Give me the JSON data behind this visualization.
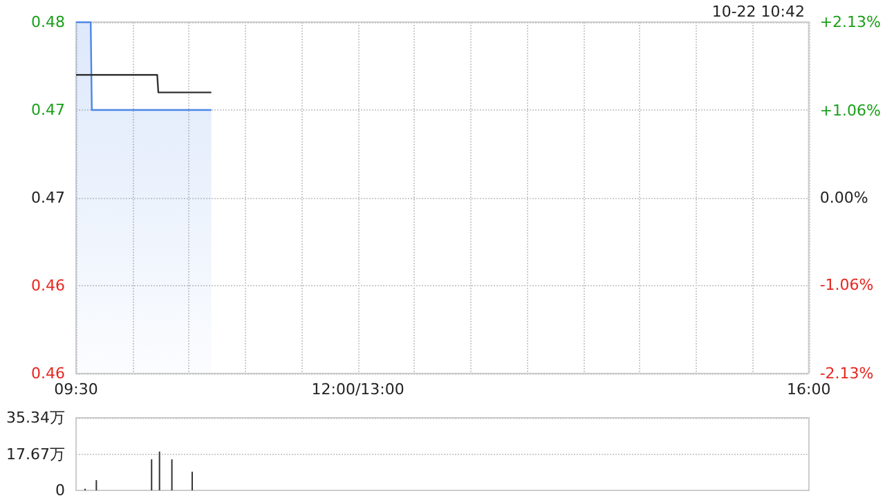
{
  "chart_data": [
    {
      "type": "line",
      "annotations": [
        "10-22 10:42"
      ],
      "series": [
        {
          "type": "area",
          "color": "#4a86e8",
          "x": [
            9.5,
            9.63,
            9.64,
            10.7
          ],
          "values": [
            0.48,
            0.48,
            0.475,
            0.475
          ]
        },
        {
          "color": "#333333",
          "x": [
            9.5,
            10.22,
            10.23,
            10.7
          ],
          "values": [
            0.477,
            0.477,
            0.476,
            0.476
          ]
        }
      ],
      "xlim": [
        9.5,
        16
      ],
      "xticks": [
        {
          "value": 9.5,
          "label": "09:30"
        },
        {
          "value": 10,
          "label": null
        },
        {
          "value": 10.5,
          "label": null
        },
        {
          "value": 11,
          "label": null
        },
        {
          "value": 11.5,
          "label": null
        },
        {
          "value": 12,
          "label": "12:00/13:00"
        },
        {
          "value": 12.5,
          "label": null
        },
        {
          "value": 13,
          "label": null
        },
        {
          "value": 13.5,
          "label": null
        },
        {
          "value": 14,
          "label": null
        },
        {
          "value": 14.5,
          "label": null
        },
        {
          "value": 15,
          "label": null
        },
        {
          "value": 15.5,
          "label": null
        },
        {
          "value": 16,
          "label": "16:00"
        }
      ],
      "ylim": [
        0.46,
        0.48
      ],
      "yticks": [
        0.46,
        {
          "value": 0.465,
          "label": "0.46"
        },
        0.47,
        {
          "value": 0.475,
          "label": "0.47"
        },
        0.48
      ],
      "y2lim": [
        -2.13,
        2.13
      ],
      "y2ticks": [
        {
          "value": -2.13,
          "label": "-2.13%"
        },
        {
          "value": -1.06,
          "label": "-1.06%"
        },
        {
          "value": 0,
          "label": "0.00%"
        },
        {
          "value": 1.06,
          "label": "+1.06%"
        },
        {
          "value": 2.13,
          "label": "+2.13%"
        }
      ],
      "grid": true,
      "line_style": "solid"
    },
    {
      "type": "bar",
      "color": "#333333",
      "x": [
        9.58,
        9.68,
        10.17,
        10.24,
        10.35,
        10.53
      ],
      "values": [
        0.8,
        5.0,
        15.1,
        18.9,
        15.1,
        9.1
      ],
      "xticks": [
        {
          "value": 9.5,
          "label": null
        },
        {
          "value": 12,
          "label": null
        },
        {
          "value": 16,
          "label": null
        }
      ],
      "xlim": [
        9.5,
        16
      ],
      "ylim": [
        0,
        35.34
      ],
      "yticks": [
        0,
        {
          "value": 17.67,
          "label": "17.67万"
        },
        {
          "value": 35.34,
          "label": "35.34万"
        }
      ],
      "tick_labels": "y",
      "grid": "y"
    }
  ]
}
